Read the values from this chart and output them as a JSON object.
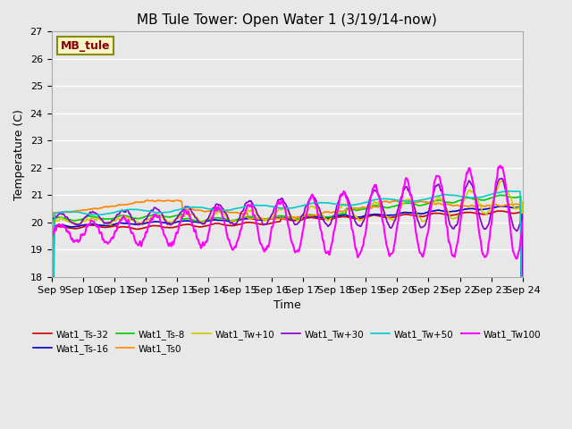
{
  "title": "MB Tule Tower: Open Water 1 (3/19/14-now)",
  "xlabel": "Time",
  "ylabel": "Temperature (C)",
  "ylim": [
    18.0,
    27.0
  ],
  "yticks": [
    18.0,
    19.0,
    20.0,
    21.0,
    22.0,
    23.0,
    24.0,
    25.0,
    26.0,
    27.0
  ],
  "xlim": [
    0,
    15
  ],
  "xtick_labels": [
    "Sep 9",
    "Sep 10",
    "Sep 11",
    "Sep 12",
    "Sep 13",
    "Sep 14",
    "Sep 15",
    "Sep 16",
    "Sep 17",
    "Sep 18",
    "Sep 19",
    "Sep 20",
    "Sep 21",
    "Sep 22",
    "Sep 23",
    "Sep 24"
  ],
  "annotation_box_text": "MB_tule",
  "annotation_box_color": "#f5f5c8",
  "annotation_box_edge_color": "#8b8b00",
  "annotation_text_color": "#8b0000",
  "background_color": "#e8e8e8",
  "plot_bg_color": "#e8e8e8",
  "grid_color": "#ffffff",
  "series": [
    {
      "label": "Wat1_Ts-32",
      "color": "#cc0000",
      "lw": 1.2
    },
    {
      "label": "Wat1_Ts-16",
      "color": "#0000cc",
      "lw": 1.2
    },
    {
      "label": "Wat1_Ts-8",
      "color": "#00cc00",
      "lw": 1.2
    },
    {
      "label": "Wat1_Ts0",
      "color": "#ff8800",
      "lw": 1.2
    },
    {
      "label": "Wat1_Tw+10",
      "color": "#cccc00",
      "lw": 1.2
    },
    {
      "label": "Wat1_Tw+30",
      "color": "#8800cc",
      "lw": 1.2
    },
    {
      "label": "Wat1_Tw+50",
      "color": "#00cccc",
      "lw": 1.2
    },
    {
      "label": "Wat1_Tw100",
      "color": "#ff00ff",
      "lw": 1.5
    }
  ]
}
